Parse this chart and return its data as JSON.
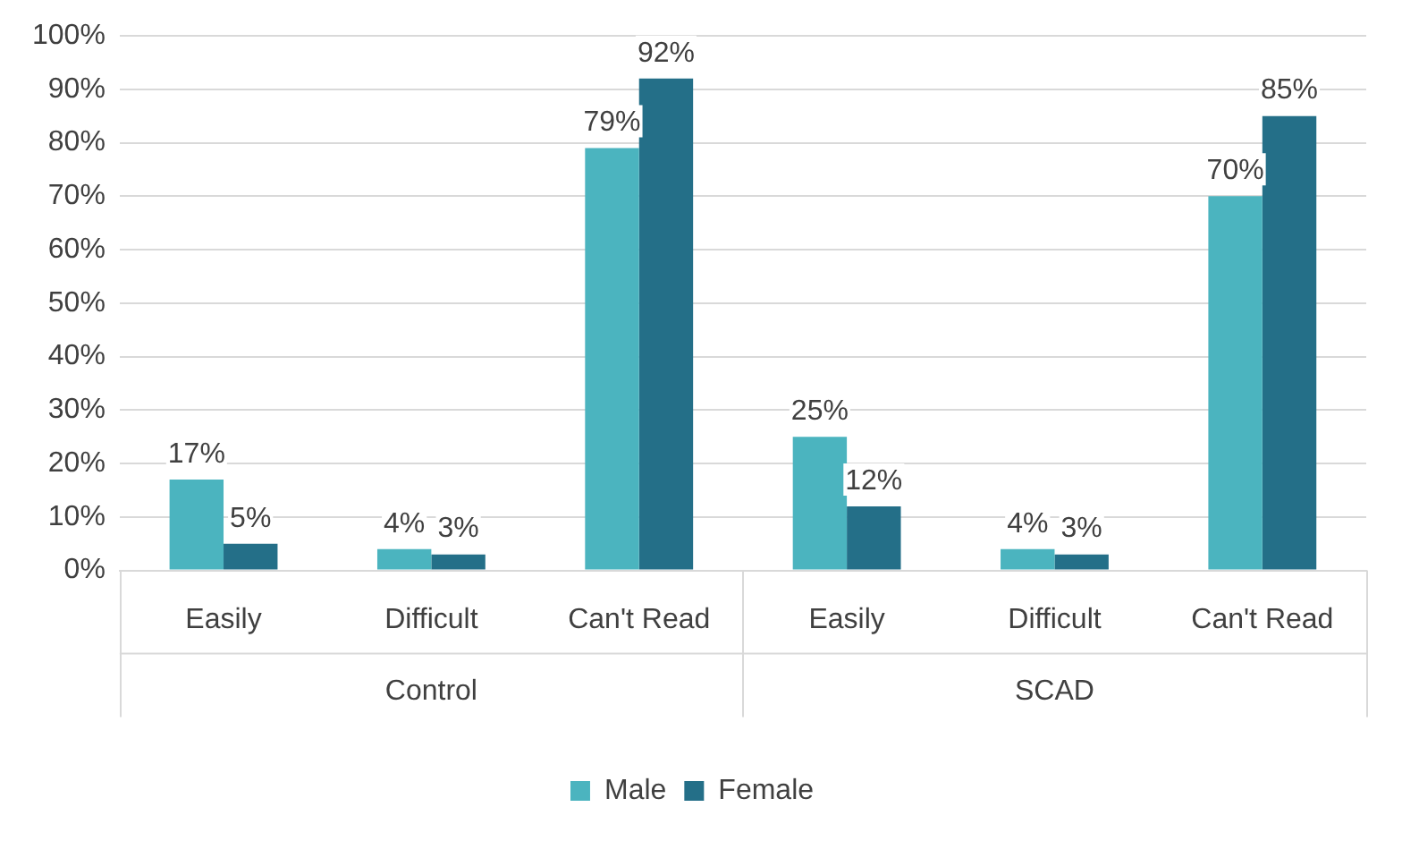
{
  "chart_data": {
    "type": "bar",
    "categories": [
      "Easily",
      "Difficult",
      "Can't Read",
      "Easily",
      "Difficult",
      "Can't Read"
    ],
    "annotations": [
      "Control",
      "SCAD"
    ],
    "series": [
      {
        "name": "Male",
        "color": "#4bb4bf",
        "values": [
          17,
          4,
          79,
          25,
          4,
          70
        ],
        "value_labels": [
          "17%",
          "4%",
          "79%",
          "25%",
          "4%",
          "70%"
        ]
      },
      {
        "name": "Female",
        "color": "#246f88",
        "values": [
          5,
          3,
          92,
          12,
          3,
          85
        ],
        "value_labels": [
          "5%",
          "3%",
          "92%",
          "12%",
          "3%",
          "85%"
        ]
      }
    ],
    "ylim": [
      0,
      100
    ],
    "yticks": [
      {
        "value": 0,
        "label": "0%"
      },
      {
        "value": 10,
        "label": "10%"
      },
      {
        "value": 20,
        "label": "20%"
      },
      {
        "value": 30,
        "label": "30%"
      },
      {
        "value": 40,
        "label": "40%"
      },
      {
        "value": 50,
        "label": "50%"
      },
      {
        "value": 60,
        "label": "60%"
      },
      {
        "value": 70,
        "label": "70%"
      },
      {
        "value": 80,
        "label": "80%"
      },
      {
        "value": 90,
        "label": "90%"
      },
      {
        "value": 100,
        "label": "100%"
      }
    ],
    "grid": "y",
    "legend": "bottom"
  }
}
